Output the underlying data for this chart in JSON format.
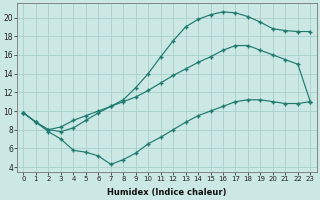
{
  "xlabel": "Humidex (Indice chaleur)",
  "background_color": "#cce8e4",
  "grid_color": "#aacfcc",
  "line_color": "#1e7a6e",
  "xlim": [
    -0.5,
    23.5
  ],
  "ylim": [
    3.5,
    21.5
  ],
  "xticks": [
    0,
    1,
    2,
    3,
    4,
    5,
    6,
    7,
    8,
    9,
    10,
    11,
    12,
    13,
    14,
    15,
    16,
    17,
    18,
    19,
    20,
    21,
    22,
    23
  ],
  "yticks": [
    4,
    6,
    8,
    10,
    12,
    14,
    16,
    18,
    20
  ],
  "curve_upper_x": [
    0,
    1,
    2,
    3,
    4,
    5,
    6,
    7,
    8,
    9,
    10,
    11,
    12,
    13,
    14,
    15,
    16,
    17,
    18,
    19,
    20,
    21,
    22,
    23
  ],
  "curve_upper_y": [
    9.8,
    8.8,
    8.0,
    7.8,
    8.2,
    9.0,
    9.8,
    10.5,
    11.2,
    12.5,
    14.0,
    15.8,
    17.5,
    19.0,
    19.8,
    20.3,
    20.6,
    20.5,
    20.1,
    19.5,
    18.8,
    18.6,
    18.5,
    18.5
  ],
  "curve_mid_x": [
    0,
    1,
    2,
    3,
    4,
    5,
    6,
    7,
    8,
    9,
    10,
    11,
    12,
    13,
    14,
    15,
    16,
    17,
    18,
    19,
    20,
    21,
    22,
    23
  ],
  "curve_mid_y": [
    9.8,
    8.8,
    8.0,
    8.3,
    9.0,
    9.5,
    10.0,
    10.5,
    11.0,
    11.5,
    12.2,
    13.0,
    13.8,
    14.5,
    15.2,
    15.8,
    16.5,
    17.0,
    17.0,
    16.5,
    16.0,
    15.5,
    15.0,
    11.0
  ],
  "curve_lower_x": [
    0,
    1,
    2,
    3,
    4,
    5,
    6,
    7,
    8,
    9,
    10,
    11,
    12,
    13,
    14,
    15,
    16,
    17,
    18,
    19,
    20,
    21,
    22,
    23
  ],
  "curve_lower_y": [
    9.8,
    8.8,
    7.8,
    7.0,
    5.8,
    5.6,
    5.2,
    4.3,
    4.8,
    5.5,
    6.5,
    7.2,
    8.0,
    8.8,
    9.5,
    10.0,
    10.5,
    11.0,
    11.2,
    11.2,
    11.0,
    10.8,
    10.8,
    11.0
  ]
}
